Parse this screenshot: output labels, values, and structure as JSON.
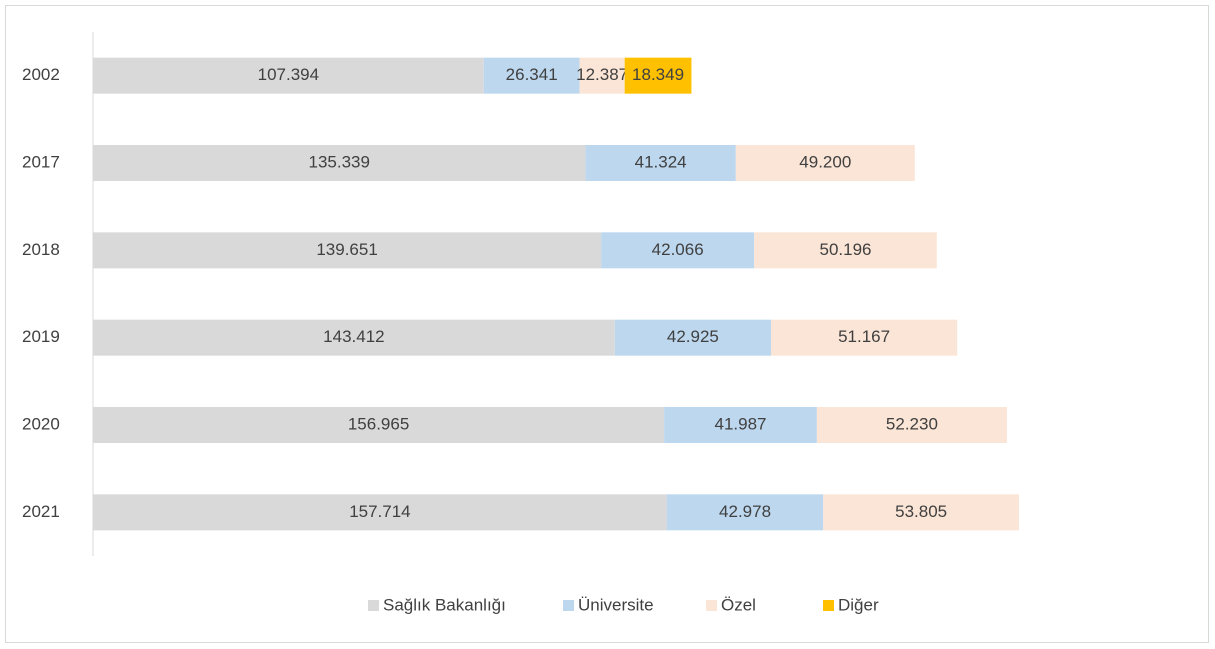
{
  "chart_data": {
    "type": "stacked-bar-horizontal",
    "categories": [
      "2002",
      "2017",
      "2018",
      "2019",
      "2020",
      "2021"
    ],
    "series": [
      {
        "name": "Sağlık Bakanlığı",
        "color": "#d9d9d9",
        "values": [
          107394,
          135339,
          139651,
          143412,
          156965,
          157714
        ],
        "value_labels": [
          "107.394",
          "135.339",
          "139.651",
          "143.412",
          "156.965",
          "157.714"
        ]
      },
      {
        "name": "Üniversite",
        "color": "#bdd7ee",
        "values": [
          26341,
          41324,
          42066,
          42925,
          41987,
          42978
        ],
        "value_labels": [
          "26.341",
          "41.324",
          "42.066",
          "42.925",
          "41.987",
          "42.978"
        ]
      },
      {
        "name": "Özel",
        "color": "#fbe5d6",
        "values": [
          12387,
          49200,
          50196,
          51167,
          52230,
          53805
        ],
        "value_labels": [
          "12.387",
          "49.200",
          "50.196",
          "51.167",
          "52.230",
          "53.805"
        ]
      },
      {
        "name": "Diğer",
        "color": "#ffc000",
        "values": [
          18349,
          null,
          null,
          null,
          null,
          null
        ],
        "value_labels": [
          "18.349",
          null,
          null,
          null,
          null,
          null
        ]
      }
    ],
    "legend": "bottom"
  }
}
